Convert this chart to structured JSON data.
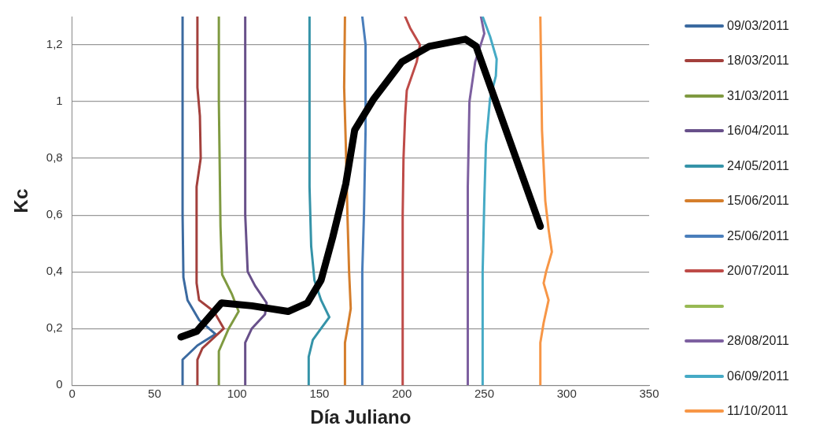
{
  "chart_data": {
    "type": "line",
    "xlabel": "Día Juliano",
    "ylabel": "Kc",
    "xlim": [
      0,
      350
    ],
    "xticks": [
      0,
      50,
      100,
      150,
      200,
      250,
      300,
      350
    ],
    "ylim": [
      0,
      1.3
    ],
    "yticks": [
      0,
      {
        "value": 0.2,
        "label": "0,2"
      },
      {
        "value": 0.4,
        "label": "0,4"
      },
      {
        "value": 0.6,
        "label": "0,6"
      },
      {
        "value": 0.8,
        "label": "0,8"
      },
      1,
      {
        "value": 1.2,
        "label": "1,2"
      }
    ],
    "grid": "y",
    "legend": "right",
    "series": [
      {
        "name": "09/03/2011",
        "color": "#3b6aa0",
        "x": [
          67,
          67,
          76,
          87,
          77,
          70,
          67.5,
          67,
          67
        ],
        "values": [
          0,
          0.09,
          0.14,
          0.18,
          0.23,
          0.3,
          0.38,
          0.6,
          1.3
        ]
      },
      {
        "name": "18/03/2011",
        "color": "#a3403c",
        "x": [
          76,
          76,
          79,
          92,
          86,
          77,
          75.5,
          75.5,
          78,
          77.5,
          76,
          76
        ],
        "values": [
          0,
          0.09,
          0.13,
          0.2,
          0.26,
          0.3,
          0.36,
          0.7,
          0.8,
          0.95,
          1.05,
          1.3
        ]
      },
      {
        "name": "31/03/2011",
        "color": "#7f9a41",
        "x": [
          89,
          89,
          95,
          101,
          97,
          91,
          90,
          89,
          89
        ],
        "values": [
          0,
          0.12,
          0.2,
          0.26,
          0.32,
          0.39,
          0.56,
          1.0,
          1.3
        ]
      },
      {
        "name": "16/04/2011",
        "color": "#68508a",
        "x": [
          105,
          105,
          109,
          117,
          118,
          111,
          106.5,
          105,
          105
        ],
        "values": [
          0,
          0.15,
          0.2,
          0.25,
          0.29,
          0.35,
          0.4,
          0.6,
          1.3
        ]
      },
      {
        "name": "24/05/2011",
        "color": "#3593a8",
        "x": [
          143.5,
          143.5,
          146,
          151,
          156,
          151,
          147,
          145,
          144,
          144
        ],
        "values": [
          0,
          0.1,
          0.16,
          0.2,
          0.24,
          0.3,
          0.37,
          0.49,
          0.7,
          1.3
        ]
      },
      {
        "name": "15/06/2011",
        "color": "#d57e2c",
        "x": [
          165.5,
          165.5,
          167,
          169,
          168,
          167,
          166,
          165,
          165.5
        ],
        "values": [
          0,
          0.15,
          0.2,
          0.27,
          0.4,
          0.6,
          0.85,
          1.05,
          1.3
        ]
      },
      {
        "name": "25/06/2011",
        "color": "#4a7ebb",
        "x": [
          176,
          176,
          177,
          178,
          178,
          176
        ],
        "values": [
          0,
          0.4,
          0.6,
          0.9,
          1.2,
          1.3
        ]
      },
      {
        "name": "20/07/2011",
        "color": "#be4b48",
        "x": [
          200.5,
          200.5,
          201,
          202,
          203,
          209,
          211,
          205,
          202
        ],
        "values": [
          0,
          0.6,
          0.8,
          0.95,
          1.04,
          1.14,
          1.2,
          1.26,
          1.3
        ]
      },
      {
        "name": null,
        "color": "#98b954"
      },
      {
        "name": "28/08/2011",
        "color": "#7d60a0",
        "x": [
          240,
          240,
          241,
          244.5,
          250,
          248
        ],
        "values": [
          0,
          0.7,
          1.0,
          1.14,
          1.24,
          1.3
        ]
      },
      {
        "name": "06/09/2011",
        "color": "#46aac5",
        "x": [
          249,
          249,
          250,
          251,
          253.5,
          257,
          257.5,
          253.5,
          249
        ],
        "values": [
          0,
          0.4,
          0.65,
          0.85,
          1.01,
          1.09,
          1.15,
          1.23,
          1.3
        ]
      },
      {
        "name": "11/10/2011",
        "color": "#f79646",
        "x": [
          284,
          284,
          286,
          289,
          286,
          287.5,
          291,
          289,
          287,
          285,
          284
        ],
        "values": [
          0,
          0.15,
          0.22,
          0.3,
          0.36,
          0.4,
          0.47,
          0.55,
          0.65,
          0.9,
          1.3
        ]
      },
      {
        "color": "#000000",
        "x": [
          66,
          75.6,
          90.6,
          109,
          131,
          142.7,
          151,
          158,
          166,
          171.4,
          183,
          200,
          216.6,
          238.5,
          245,
          284
        ],
        "values": [
          0.17,
          0.19,
          0.29,
          0.28,
          0.26,
          0.29,
          0.37,
          0.52,
          0.71,
          0.9,
          1.01,
          1.14,
          1.195,
          1.22,
          1.195,
          0.56
        ]
      }
    ]
  }
}
